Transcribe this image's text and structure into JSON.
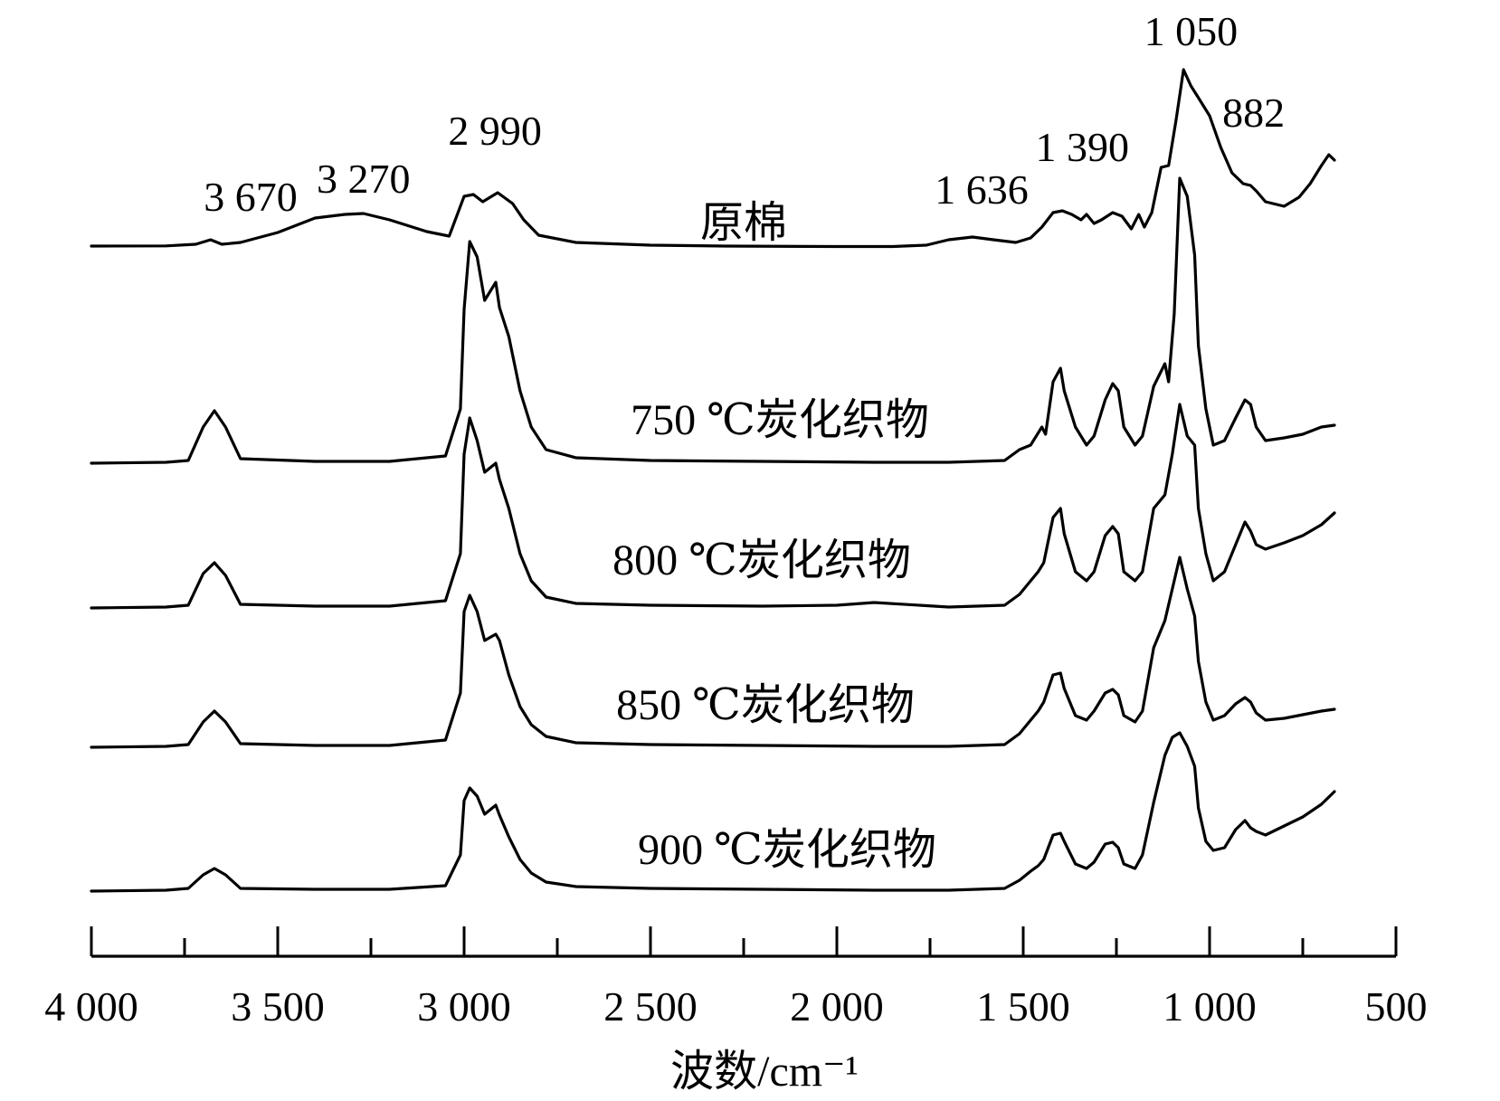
{
  "chart_data": {
    "type": "line",
    "xlabel": "波数/cm⁻¹",
    "xlim": [
      4000,
      500
    ],
    "major_ticks": [
      4000,
      3500,
      3000,
      2500,
      2000,
      1500,
      1000,
      500
    ],
    "tick_labels": [
      "4 000",
      "3 500",
      "3 000",
      "2 500",
      "2 000",
      "1 500",
      "1 000",
      "500"
    ],
    "minor_ticks": [
      3750,
      3250,
      2750,
      2250,
      1750,
      1250,
      750
    ],
    "peak_labels": [
      {
        "x": 3670,
        "text": "3 670"
      },
      {
        "x": 3270,
        "text": "3 270"
      },
      {
        "x": 2990,
        "text": "2 990"
      },
      {
        "x": 1636,
        "text": "1 636"
      },
      {
        "x": 1390,
        "text": "1 390"
      },
      {
        "x": 1050,
        "text": "1 050"
      },
      {
        "x": 882,
        "text": "882"
      }
    ],
    "series": [
      {
        "name": "原棉",
        "points": [
          [
            4000,
            1.0
          ],
          [
            3800,
            1.2
          ],
          [
            3720,
            3
          ],
          [
            3680,
            8
          ],
          [
            3650,
            3
          ],
          [
            3600,
            5
          ],
          [
            3500,
            16
          ],
          [
            3400,
            32
          ],
          [
            3320,
            36
          ],
          [
            3270,
            37
          ],
          [
            3200,
            30
          ],
          [
            3100,
            17
          ],
          [
            3040,
            12
          ],
          [
            3000,
            56
          ],
          [
            2975,
            58
          ],
          [
            2950,
            50
          ],
          [
            2910,
            60
          ],
          [
            2870,
            48
          ],
          [
            2840,
            30
          ],
          [
            2800,
            13
          ],
          [
            2700,
            5
          ],
          [
            2500,
            2
          ],
          [
            2300,
            1
          ],
          [
            2000,
            0.5
          ],
          [
            1850,
            0.5
          ],
          [
            1760,
            2
          ],
          [
            1700,
            8
          ],
          [
            1636,
            11
          ],
          [
            1580,
            8
          ],
          [
            1520,
            5
          ],
          [
            1480,
            10
          ],
          [
            1450,
            22
          ],
          [
            1420,
            38
          ],
          [
            1395,
            40
          ],
          [
            1370,
            36
          ],
          [
            1345,
            30
          ],
          [
            1330,
            36
          ],
          [
            1310,
            26
          ],
          [
            1290,
            30
          ],
          [
            1260,
            38
          ],
          [
            1235,
            34
          ],
          [
            1210,
            20
          ],
          [
            1190,
            36
          ],
          [
            1175,
            22
          ],
          [
            1155,
            38
          ],
          [
            1130,
            88
          ],
          [
            1110,
            90
          ],
          [
            1090,
            140
          ],
          [
            1070,
            196
          ],
          [
            1050,
            178
          ],
          [
            1030,
            165
          ],
          [
            1000,
            145
          ],
          [
            970,
            110
          ],
          [
            940,
            82
          ],
          [
            910,
            70
          ],
          [
            890,
            68
          ],
          [
            875,
            62
          ],
          [
            850,
            50
          ],
          [
            800,
            45
          ],
          [
            760,
            55
          ],
          [
            730,
            70
          ],
          [
            700,
            90
          ],
          [
            680,
            102
          ],
          [
            665,
            96
          ]
        ]
      },
      {
        "name": "750 ℃炭化织物",
        "points": [
          [
            4000,
            0
          ],
          [
            3800,
            1
          ],
          [
            3740,
            3
          ],
          [
            3700,
            40
          ],
          [
            3670,
            58
          ],
          [
            3640,
            40
          ],
          [
            3600,
            5
          ],
          [
            3400,
            2
          ],
          [
            3200,
            2
          ],
          [
            3050,
            8
          ],
          [
            3010,
            60
          ],
          [
            3000,
            170
          ],
          [
            2985,
            245
          ],
          [
            2965,
            228
          ],
          [
            2945,
            180
          ],
          [
            2915,
            200
          ],
          [
            2905,
            172
          ],
          [
            2880,
            140
          ],
          [
            2850,
            80
          ],
          [
            2820,
            40
          ],
          [
            2780,
            15
          ],
          [
            2700,
            6
          ],
          [
            2500,
            3
          ],
          [
            2200,
            2
          ],
          [
            1900,
            1
          ],
          [
            1700,
            1
          ],
          [
            1550,
            3
          ],
          [
            1510,
            15
          ],
          [
            1480,
            20
          ],
          [
            1450,
            40
          ],
          [
            1440,
            32
          ],
          [
            1420,
            90
          ],
          [
            1400,
            105
          ],
          [
            1390,
            80
          ],
          [
            1360,
            40
          ],
          [
            1330,
            20
          ],
          [
            1310,
            30
          ],
          [
            1280,
            70
          ],
          [
            1260,
            88
          ],
          [
            1245,
            80
          ],
          [
            1230,
            40
          ],
          [
            1200,
            20
          ],
          [
            1180,
            30
          ],
          [
            1150,
            85
          ],
          [
            1120,
            110
          ],
          [
            1110,
            90
          ],
          [
            1095,
            165
          ],
          [
            1080,
            315
          ],
          [
            1060,
            295
          ],
          [
            1040,
            230
          ],
          [
            1030,
            130
          ],
          [
            1010,
            60
          ],
          [
            990,
            20
          ],
          [
            960,
            25
          ],
          [
            930,
            50
          ],
          [
            905,
            70
          ],
          [
            890,
            65
          ],
          [
            875,
            40
          ],
          [
            850,
            25
          ],
          [
            800,
            28
          ],
          [
            750,
            32
          ],
          [
            700,
            40
          ],
          [
            665,
            42
          ]
        ]
      },
      {
        "name": "800 ℃炭化织物",
        "points": [
          [
            4000,
            0
          ],
          [
            3800,
            1
          ],
          [
            3740,
            3
          ],
          [
            3700,
            38
          ],
          [
            3670,
            50
          ],
          [
            3640,
            36
          ],
          [
            3600,
            4
          ],
          [
            3400,
            2
          ],
          [
            3200,
            2
          ],
          [
            3050,
            8
          ],
          [
            3010,
            60
          ],
          [
            3000,
            170
          ],
          [
            2985,
            210
          ],
          [
            2965,
            185
          ],
          [
            2945,
            150
          ],
          [
            2915,
            160
          ],
          [
            2905,
            142
          ],
          [
            2880,
            110
          ],
          [
            2850,
            60
          ],
          [
            2820,
            30
          ],
          [
            2780,
            12
          ],
          [
            2700,
            5
          ],
          [
            2500,
            3
          ],
          [
            2200,
            2
          ],
          [
            2000,
            3
          ],
          [
            1900,
            6
          ],
          [
            1700,
            1
          ],
          [
            1550,
            3
          ],
          [
            1510,
            15
          ],
          [
            1480,
            30
          ],
          [
            1460,
            40
          ],
          [
            1445,
            50
          ],
          [
            1420,
            100
          ],
          [
            1400,
            110
          ],
          [
            1390,
            82
          ],
          [
            1360,
            40
          ],
          [
            1330,
            30
          ],
          [
            1310,
            40
          ],
          [
            1280,
            80
          ],
          [
            1260,
            90
          ],
          [
            1245,
            82
          ],
          [
            1230,
            40
          ],
          [
            1200,
            30
          ],
          [
            1180,
            40
          ],
          [
            1150,
            110
          ],
          [
            1120,
            125
          ],
          [
            1100,
            170
          ],
          [
            1080,
            225
          ],
          [
            1060,
            190
          ],
          [
            1040,
            180
          ],
          [
            1030,
            110
          ],
          [
            1010,
            60
          ],
          [
            990,
            30
          ],
          [
            960,
            40
          ],
          [
            930,
            70
          ],
          [
            905,
            95
          ],
          [
            890,
            85
          ],
          [
            875,
            70
          ],
          [
            850,
            65
          ],
          [
            800,
            72
          ],
          [
            750,
            80
          ],
          [
            700,
            92
          ],
          [
            665,
            105
          ]
        ]
      },
      {
        "name": "850 ℃炭化织物",
        "points": [
          [
            4000,
            0
          ],
          [
            3800,
            1
          ],
          [
            3740,
            3
          ],
          [
            3700,
            28
          ],
          [
            3670,
            40
          ],
          [
            3640,
            28
          ],
          [
            3600,
            4
          ],
          [
            3400,
            2
          ],
          [
            3200,
            2
          ],
          [
            3050,
            8
          ],
          [
            3010,
            60
          ],
          [
            3000,
            150
          ],
          [
            2985,
            168
          ],
          [
            2965,
            150
          ],
          [
            2945,
            118
          ],
          [
            2915,
            125
          ],
          [
            2905,
            118
          ],
          [
            2880,
            80
          ],
          [
            2850,
            45
          ],
          [
            2820,
            25
          ],
          [
            2780,
            12
          ],
          [
            2700,
            5
          ],
          [
            2500,
            3
          ],
          [
            2200,
            2
          ],
          [
            1900,
            1
          ],
          [
            1700,
            1
          ],
          [
            1550,
            3
          ],
          [
            1510,
            15
          ],
          [
            1480,
            30
          ],
          [
            1460,
            40
          ],
          [
            1445,
            50
          ],
          [
            1420,
            80
          ],
          [
            1400,
            82
          ],
          [
            1390,
            65
          ],
          [
            1360,
            35
          ],
          [
            1330,
            30
          ],
          [
            1310,
            40
          ],
          [
            1280,
            60
          ],
          [
            1260,
            64
          ],
          [
            1245,
            58
          ],
          [
            1230,
            35
          ],
          [
            1200,
            28
          ],
          [
            1180,
            40
          ],
          [
            1150,
            110
          ],
          [
            1120,
            140
          ],
          [
            1100,
            175
          ],
          [
            1080,
            210
          ],
          [
            1060,
            175
          ],
          [
            1040,
            145
          ],
          [
            1030,
            95
          ],
          [
            1010,
            50
          ],
          [
            990,
            30
          ],
          [
            960,
            35
          ],
          [
            930,
            48
          ],
          [
            905,
            55
          ],
          [
            890,
            50
          ],
          [
            875,
            38
          ],
          [
            850,
            30
          ],
          [
            800,
            32
          ],
          [
            750,
            36
          ],
          [
            700,
            40
          ],
          [
            665,
            42
          ]
        ]
      },
      {
        "name": "900 ℃炭化织物",
        "points": [
          [
            4000,
            0
          ],
          [
            3800,
            1
          ],
          [
            3740,
            3
          ],
          [
            3700,
            18
          ],
          [
            3670,
            25
          ],
          [
            3640,
            18
          ],
          [
            3600,
            3
          ],
          [
            3400,
            2
          ],
          [
            3200,
            2
          ],
          [
            3050,
            6
          ],
          [
            3010,
            40
          ],
          [
            3000,
            100
          ],
          [
            2985,
            114
          ],
          [
            2965,
            105
          ],
          [
            2945,
            85
          ],
          [
            2915,
            95
          ],
          [
            2905,
            84
          ],
          [
            2880,
            60
          ],
          [
            2850,
            35
          ],
          [
            2820,
            20
          ],
          [
            2780,
            10
          ],
          [
            2700,
            5
          ],
          [
            2500,
            3
          ],
          [
            2200,
            2
          ],
          [
            1900,
            1
          ],
          [
            1700,
            1
          ],
          [
            1550,
            3
          ],
          [
            1510,
            12
          ],
          [
            1480,
            22
          ],
          [
            1460,
            28
          ],
          [
            1445,
            35
          ],
          [
            1420,
            62
          ],
          [
            1400,
            64
          ],
          [
            1390,
            55
          ],
          [
            1360,
            30
          ],
          [
            1330,
            25
          ],
          [
            1310,
            32
          ],
          [
            1280,
            52
          ],
          [
            1260,
            54
          ],
          [
            1245,
            48
          ],
          [
            1230,
            30
          ],
          [
            1200,
            25
          ],
          [
            1180,
            40
          ],
          [
            1150,
            98
          ],
          [
            1120,
            150
          ],
          [
            1100,
            170
          ],
          [
            1080,
            175
          ],
          [
            1060,
            160
          ],
          [
            1040,
            138
          ],
          [
            1030,
            92
          ],
          [
            1010,
            55
          ],
          [
            990,
            45
          ],
          [
            960,
            48
          ],
          [
            930,
            68
          ],
          [
            905,
            78
          ],
          [
            890,
            70
          ],
          [
            875,
            66
          ],
          [
            850,
            62
          ],
          [
            800,
            72
          ],
          [
            750,
            82
          ],
          [
            700,
            96
          ],
          [
            665,
            110
          ]
        ]
      }
    ]
  }
}
